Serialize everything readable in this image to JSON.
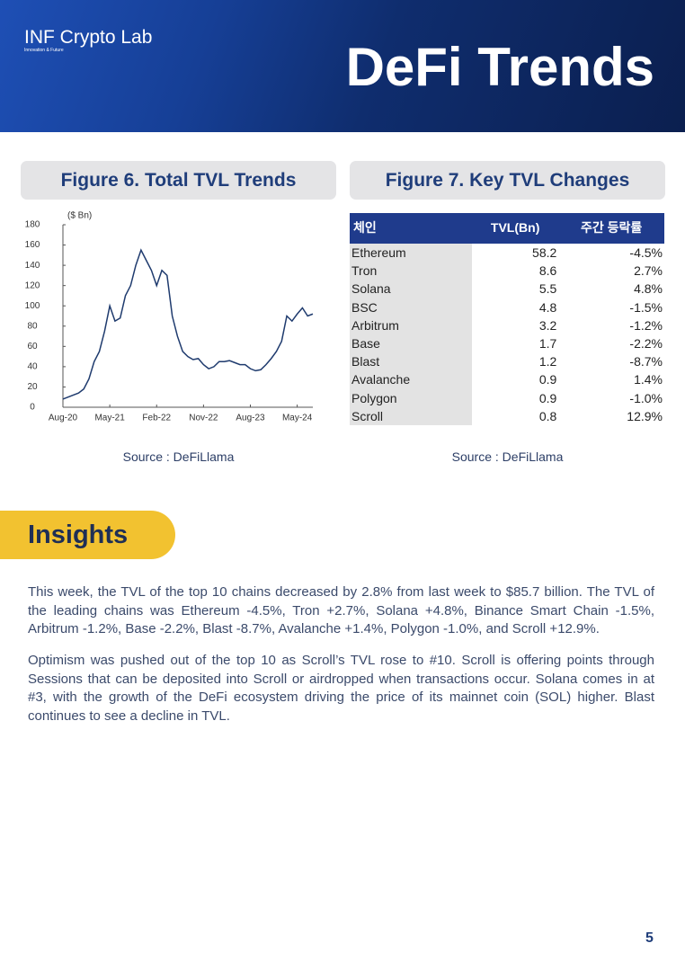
{
  "header": {
    "brand": "INF Crypto Lab",
    "tagline": "Innovation & Future",
    "title": "DeFi Trends"
  },
  "chart_data": {
    "type": "line",
    "title": "Figure 6. Total TVL Trends",
    "unit_label": "($ Bn)",
    "source": "Source : DeFiLlama",
    "x": [
      "Aug-20",
      "Sep-20",
      "Oct-20",
      "Nov-20",
      "Dec-20",
      "Jan-21",
      "Feb-21",
      "Mar-21",
      "Apr-21",
      "May-21",
      "Jun-21",
      "Jul-21",
      "Aug-21",
      "Sep-21",
      "Oct-21",
      "Nov-21",
      "Dec-21",
      "Jan-22",
      "Feb-22",
      "Mar-22",
      "Apr-22",
      "May-22",
      "Jun-22",
      "Jul-22",
      "Aug-22",
      "Sep-22",
      "Oct-22",
      "Nov-22",
      "Dec-22",
      "Jan-23",
      "Feb-23",
      "Mar-23",
      "Apr-23",
      "May-23",
      "Jun-23",
      "Jul-23",
      "Aug-23",
      "Sep-23",
      "Oct-23",
      "Nov-23",
      "Dec-23",
      "Jan-24",
      "Feb-24",
      "Mar-24",
      "Apr-24",
      "May-24",
      "Jun-24",
      "Jul-24",
      "Aug-24"
    ],
    "series": [
      {
        "color": "#1f3b6e",
        "values": [
          8,
          10,
          12,
          14,
          18,
          28,
          45,
          55,
          75,
          100,
          85,
          88,
          110,
          120,
          140,
          155,
          145,
          135,
          120,
          135,
          130,
          90,
          70,
          55,
          50,
          47,
          48,
          42,
          38,
          40,
          45,
          45,
          46,
          44,
          42,
          42,
          38,
          36,
          37,
          42,
          48,
          55,
          65,
          90,
          85,
          92,
          98,
          90,
          92
        ]
      }
    ],
    "xticks": [
      "Aug-20",
      "May-21",
      "Feb-22",
      "Nov-22",
      "Aug-23",
      "May-24"
    ],
    "ylim": [
      0,
      180
    ],
    "yticks": [
      0,
      20,
      40,
      60,
      80,
      100,
      120,
      140,
      160,
      180
    ]
  },
  "table": {
    "title": "Figure 7. Key TVL Changes",
    "source": "Source : DeFiLlama",
    "columns": [
      "체인",
      "TVL(Bn)",
      "주간 등락률"
    ],
    "rows": [
      [
        "Ethereum",
        "58.2",
        "-4.5%"
      ],
      [
        "Tron",
        "8.6",
        "2.7%"
      ],
      [
        "Solana",
        "5.5",
        "4.8%"
      ],
      [
        "BSC",
        "4.8",
        "-1.5%"
      ],
      [
        "Arbitrum",
        "3.2",
        "-1.2%"
      ],
      [
        "Base",
        "1.7",
        "-2.2%"
      ],
      [
        "Blast",
        "1.2",
        "-8.7%"
      ],
      [
        "Avalanche",
        "0.9",
        "1.4%"
      ],
      [
        "Polygon",
        "0.9",
        "-1.0%"
      ],
      [
        "Scroll",
        "0.8",
        "12.9%"
      ]
    ]
  },
  "insights": {
    "heading": "Insights",
    "paragraphs": [
      "This week, the TVL of the top 10 chains decreased by 2.8% from last week to $85.7 billion. The TVL of the leading chains was Ethereum -4.5%, Tron +2.7%, Solana +4.8%, Binance Smart Chain -1.5%, Arbitrum -1.2%, Base -2.2%, Blast -8.7%, Avalanche +1.4%, Polygon -1.0%, and Scroll +12.9%.",
      "Optimism was pushed out of the top 10 as Scroll’s TVL rose to #10. Scroll is offering points through Sessions that can be deposited into Scroll or airdropped when transactions occur. Solana comes in at #3, with the growth of the DeFi ecosystem driving the price of its mainnet coin (SOL) higher. Blast continues to see a decline in TVL."
    ]
  },
  "page_number": "5"
}
